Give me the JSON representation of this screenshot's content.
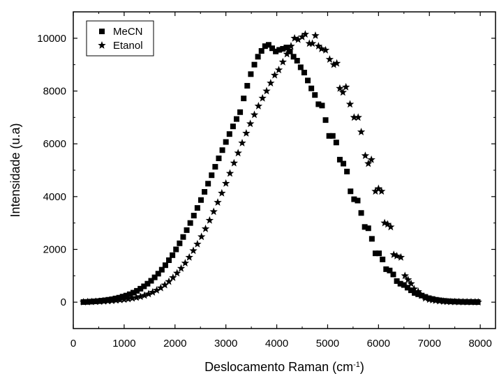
{
  "chart_data": {
    "type": "scatter",
    "title": "",
    "xlabel": "Deslocamento Raman (cm",
    "xlabel_sup": "-1",
    "xlabel_end": ")",
    "ylabel": "Intensidade (u.a)",
    "xlim": [
      0,
      8300
    ],
    "ylim": [
      -1000,
      11000
    ],
    "xticks": [
      "0",
      "1000",
      "2000",
      "3000",
      "4000",
      "5000",
      "6000",
      "7000",
      "8000"
    ],
    "yticks": [
      "0",
      "2000",
      "4000",
      "6000",
      "8000",
      "10000"
    ],
    "grid": false,
    "legend_position": "top-left",
    "series": [
      {
        "name": "MeCN",
        "marker": "square",
        "x": [
          200,
          270,
          340,
          410,
          480,
          550,
          620,
          690,
          760,
          830,
          900,
          970,
          1040,
          1110,
          1180,
          1250,
          1320,
          1390,
          1460,
          1530,
          1600,
          1670,
          1740,
          1810,
          1880,
          1950,
          2020,
          2090,
          2160,
          2230,
          2300,
          2370,
          2440,
          2510,
          2580,
          2650,
          2720,
          2790,
          2860,
          2930,
          3000,
          3070,
          3140,
          3210,
          3280,
          3350,
          3420,
          3490,
          3560,
          3630,
          3700,
          3770,
          3840,
          3910,
          3980,
          4050,
          4120,
          4190,
          4260,
          4330,
          4400,
          4470,
          4540,
          4610,
          4680,
          4750,
          4820,
          4890,
          4960,
          5030,
          5100,
          5170,
          5240,
          5310,
          5380,
          5450,
          5520,
          5590,
          5660,
          5730,
          5800,
          5870,
          5940,
          6010,
          6080,
          6150,
          6220,
          6290,
          6360,
          6430,
          6500,
          6570,
          6640,
          6710,
          6780,
          6850,
          6920,
          6990,
          7060,
          7130,
          7200,
          7270,
          7340,
          7410,
          7480,
          7550,
          7620,
          7690,
          7760,
          7830,
          7900,
          7950
        ],
        "y": [
          5,
          10,
          20,
          30,
          40,
          55,
          70,
          90,
          110,
          140,
          170,
          210,
          250,
          300,
          360,
          430,
          510,
          600,
          700,
          810,
          940,
          1080,
          1230,
          1400,
          1590,
          1780,
          2000,
          2230,
          2470,
          2730,
          3000,
          3280,
          3570,
          3870,
          4180,
          4490,
          4810,
          5130,
          5450,
          5760,
          6070,
          6370,
          6660,
          6940,
          7200,
          7720,
          8200,
          8640,
          9000,
          9300,
          9520,
          9700,
          9750,
          9620,
          9500,
          9560,
          9600,
          9650,
          9500,
          9300,
          9150,
          8900,
          8700,
          8400,
          8100,
          7850,
          7500,
          7450,
          6900,
          6300,
          6300,
          6050,
          5400,
          5250,
          4950,
          4200,
          3900,
          3850,
          3380,
          2850,
          2800,
          2400,
          1850,
          1850,
          1620,
          1250,
          1200,
          1050,
          800,
          700,
          650,
          550,
          450,
          350,
          300,
          250,
          200,
          150,
          120,
          90,
          70,
          50,
          40,
          30,
          25,
          20,
          15,
          12,
          10,
          8,
          6,
          5
        ]
      },
      {
        "name": "Etanol",
        "marker": "star",
        "x": [
          200,
          280,
          360,
          440,
          520,
          600,
          680,
          760,
          840,
          920,
          1000,
          1080,
          1160,
          1240,
          1320,
          1400,
          1480,
          1560,
          1640,
          1720,
          1800,
          1880,
          1960,
          2040,
          2120,
          2200,
          2280,
          2360,
          2440,
          2520,
          2600,
          2680,
          2760,
          2840,
          2920,
          3000,
          3080,
          3160,
          3240,
          3320,
          3400,
          3480,
          3560,
          3640,
          3720,
          3800,
          3880,
          3960,
          4040,
          4120,
          4200,
          4280,
          4350,
          4420,
          4500,
          4560,
          4640,
          4700,
          4760,
          4820,
          4880,
          4960,
          5040,
          5120,
          5180,
          5240,
          5300,
          5360,
          5440,
          5520,
          5600,
          5660,
          5740,
          5800,
          5860,
          5940,
          6000,
          6060,
          6120,
          6180,
          6240,
          6300,
          6360,
          6440,
          6520,
          6580,
          6640,
          6700,
          6780,
          6840,
          6920,
          7000,
          7060,
          7120,
          7200,
          7280,
          7340,
          7420,
          7500,
          7580,
          7660,
          7740,
          7820,
          7900,
          7960
        ],
        "y": [
          5,
          10,
          15,
          20,
          25,
          35,
          45,
          55,
          70,
          85,
          100,
          120,
          145,
          175,
          210,
          255,
          310,
          375,
          450,
          540,
          650,
          780,
          930,
          1100,
          1280,
          1480,
          1700,
          1950,
          2200,
          2480,
          2780,
          3100,
          3430,
          3780,
          4130,
          4500,
          4880,
          5270,
          5650,
          6030,
          6400,
          6760,
          7100,
          7430,
          7730,
          8000,
          8300,
          8600,
          8800,
          9100,
          9400,
          9700,
          10000,
          9950,
          10050,
          10150,
          9800,
          9800,
          10100,
          9700,
          9600,
          9550,
          9200,
          9000,
          9050,
          8100,
          7950,
          8150,
          7500,
          7000,
          7000,
          6450,
          5550,
          5250,
          5400,
          4200,
          4300,
          4200,
          3000,
          2950,
          2850,
          1800,
          1750,
          1700,
          1000,
          850,
          700,
          500,
          400,
          250,
          150,
          100,
          80,
          60,
          40,
          30,
          20,
          15,
          10,
          8,
          6,
          5,
          4,
          3,
          2
        ]
      }
    ]
  }
}
